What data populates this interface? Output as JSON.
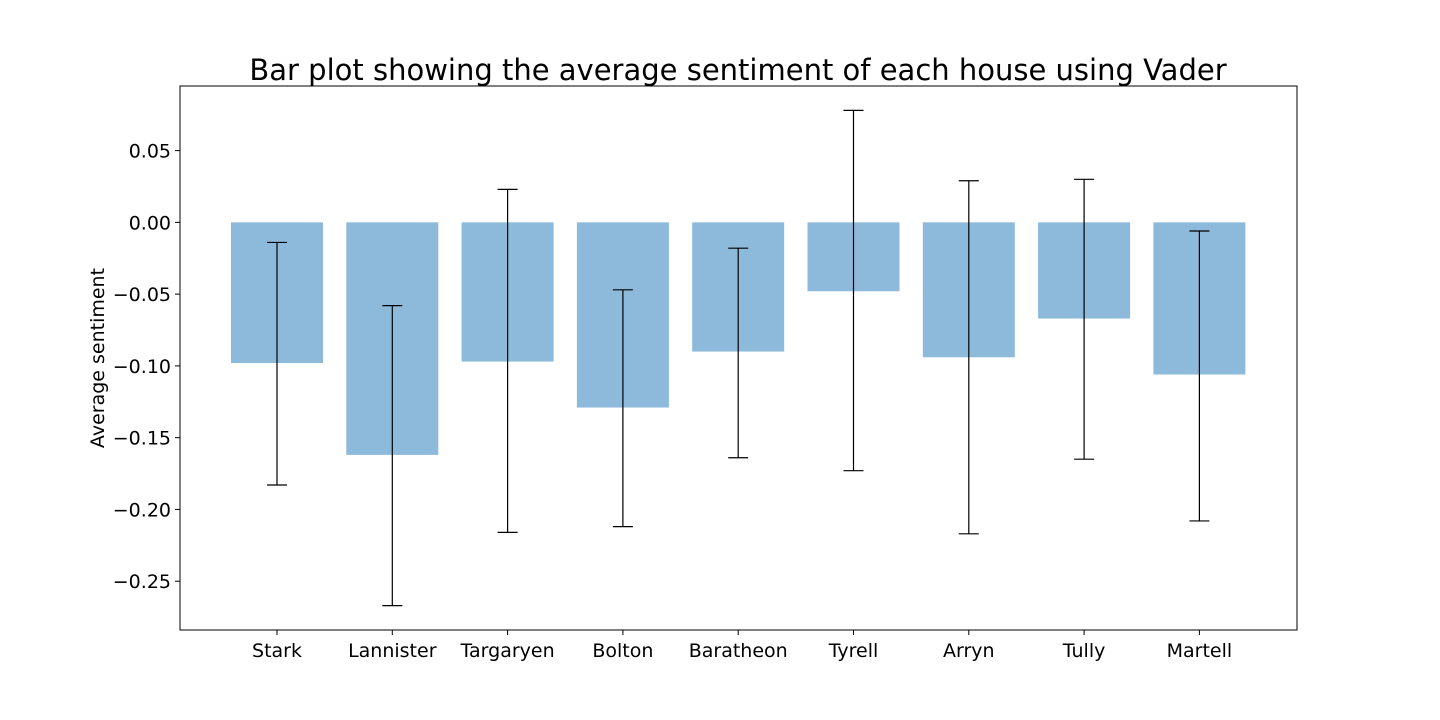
{
  "chart_data": {
    "type": "bar",
    "title": "Bar plot showing the average sentiment of each house using Vader",
    "xlabel": "",
    "ylabel": "Average sentiment",
    "categories": [
      "Stark",
      "Lannister",
      "Targaryen",
      "Bolton",
      "Baratheon",
      "Tyrell",
      "Arryn",
      "Tully",
      "Martell"
    ],
    "values": [
      -0.098,
      -0.162,
      -0.097,
      -0.129,
      -0.09,
      -0.048,
      -0.094,
      -0.067,
      -0.106
    ],
    "error_lower": [
      -0.183,
      -0.267,
      -0.216,
      -0.212,
      -0.164,
      -0.173,
      -0.217,
      -0.165,
      -0.208
    ],
    "error_upper": [
      -0.014,
      -0.058,
      0.023,
      -0.047,
      -0.018,
      0.078,
      0.029,
      0.03,
      -0.006
    ],
    "ylim": [
      -0.284,
      0.095
    ],
    "yticks": [
      0.05,
      0.0,
      -0.05,
      -0.1,
      -0.15,
      -0.2,
      -0.25
    ],
    "ytick_labels": [
      "0.05",
      "0.00",
      "−0.05",
      "−0.10",
      "−0.15",
      "−0.20",
      "−0.25"
    ],
    "grid": false,
    "bar_color": "#8db9da",
    "error_color": "#000000"
  }
}
